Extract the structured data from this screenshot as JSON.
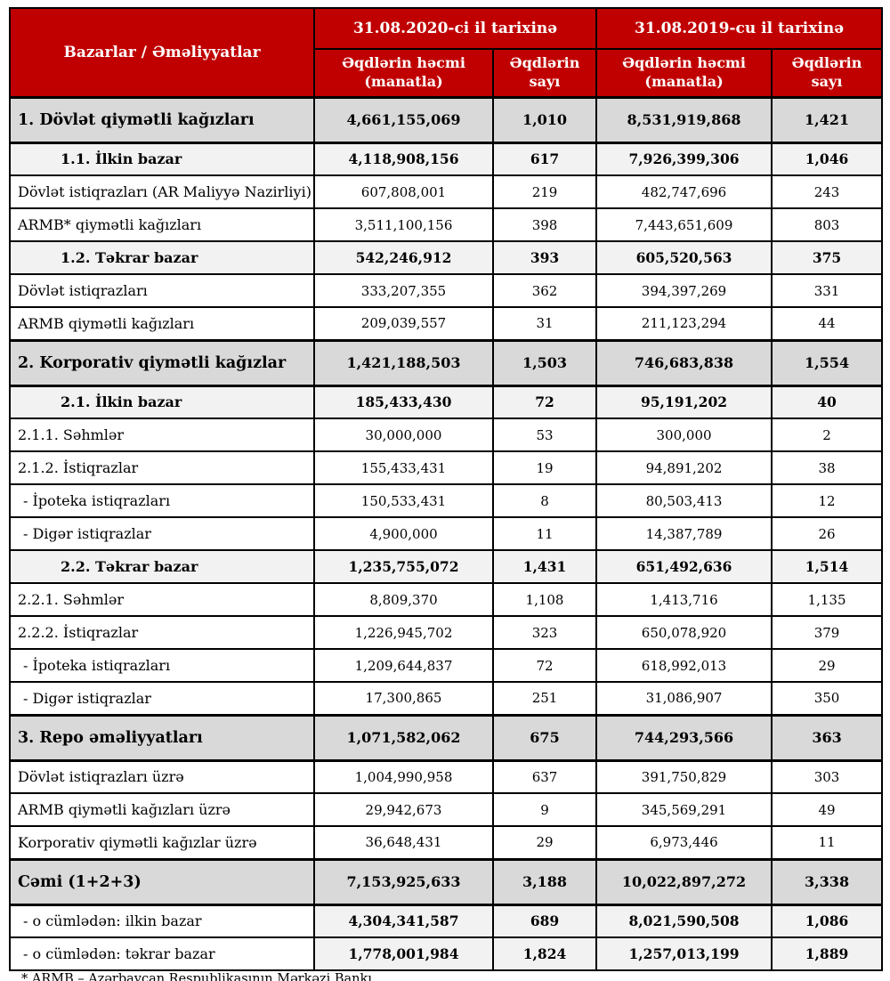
{
  "header": {
    "row_label": "Bazarlar / Əməliyyatlar",
    "groups": [
      {
        "title": "31.08.2020-ci il tarixinə",
        "volume_label": "Əqdlərin həcmi (manatla)",
        "count_label": "Əqdlərin sayı"
      },
      {
        "title": "31.08.2019-cu il tarixinə",
        "volume_label": "Əqdlərin həcmi (manatla)",
        "count_label": "Əqdlərin sayı"
      }
    ]
  },
  "rows": [
    {
      "style": "section",
      "label": "1. Dövlət qiymətli kağızları",
      "v2020": "4,661,155,069",
      "c2020": "1,010",
      "v2019": "8,531,919,868",
      "c2019": "1,421"
    },
    {
      "style": "subsection",
      "label": "1.1. İlkin bazar",
      "v2020": "4,118,908,156",
      "c2020": "617",
      "v2019": "7,926,399,306",
      "c2019": "1,046"
    },
    {
      "style": "detail",
      "label": "Dövlət istiqrazları (AR Maliyyə Nazirliyi)",
      "v2020": "607,808,001",
      "c2020": "219",
      "v2019": "482,747,696",
      "c2019": "243"
    },
    {
      "style": "detail",
      "label": "ARMB* qiymətli kağızları",
      "v2020": "3,511,100,156",
      "c2020": "398",
      "v2019": "7,443,651,609",
      "c2019": "803"
    },
    {
      "style": "subsection",
      "label": "1.2. Təkrar bazar",
      "v2020": "542,246,912",
      "c2020": "393",
      "v2019": "605,520,563",
      "c2019": "375"
    },
    {
      "style": "detail",
      "label": "Dövlət istiqrazları",
      "v2020": "333,207,355",
      "c2020": "362",
      "v2019": "394,397,269",
      "c2019": "331"
    },
    {
      "style": "detail",
      "label": "ARMB qiymətli kağızları",
      "v2020": "209,039,557",
      "c2020": "31",
      "v2019": "211,123,294",
      "c2019": "44"
    },
    {
      "style": "section",
      "label": "2. Korporativ qiymətli kağızlar",
      "v2020": "1,421,188,503",
      "c2020": "1,503",
      "v2019": "746,683,838",
      "c2019": "1,554"
    },
    {
      "style": "subsection",
      "label": "2.1. İlkin bazar",
      "v2020": "185,433,430",
      "c2020": "72",
      "v2019": "95,191,202",
      "c2019": "40"
    },
    {
      "style": "detail",
      "label": "2.1.1. Səhmlər",
      "v2020": "30,000,000",
      "c2020": "53",
      "v2019": "300,000",
      "c2019": "2"
    },
    {
      "style": "detail",
      "label": "2.1.2. İstiqrazlar",
      "v2020": "155,433,431",
      "c2020": "19",
      "v2019": "94,891,202",
      "c2019": "38"
    },
    {
      "style": "detail dash",
      "label": "-  İpoteka istiqrazları",
      "v2020": "150,533,431",
      "c2020": "8",
      "v2019": "80,503,413",
      "c2019": "12"
    },
    {
      "style": "detail dash",
      "label": "-  Digər istiqrazlar",
      "v2020": "4,900,000",
      "c2020": "11",
      "v2019": "14,387,789",
      "c2019": "26"
    },
    {
      "style": "subsection",
      "label": "2.2. Təkrar bazar",
      "v2020": "1,235,755,072",
      "c2020": "1,431",
      "v2019": "651,492,636",
      "c2019": "1,514"
    },
    {
      "style": "detail",
      "label": "2.2.1. Səhmlər",
      "v2020": "8,809,370",
      "c2020": "1,108",
      "v2019": "1,413,716",
      "c2019": "1,135"
    },
    {
      "style": "detail",
      "label": "2.2.2. İstiqrazlar",
      "v2020": "1,226,945,702",
      "c2020": "323",
      "v2019": "650,078,920",
      "c2019": "379"
    },
    {
      "style": "detail dash",
      "label": "-  İpoteka istiqrazları",
      "v2020": "1,209,644,837",
      "c2020": "72",
      "v2019": "618,992,013",
      "c2019": "29"
    },
    {
      "style": "detail dash",
      "label": "-  Digər istiqrazlar",
      "v2020": "17,300,865",
      "c2020": "251",
      "v2019": "31,086,907",
      "c2019": "350"
    },
    {
      "style": "section",
      "label": "3. Repo əməliyyatları",
      "v2020": "1,071,582,062",
      "c2020": "675",
      "v2019": "744,293,566",
      "c2019": "363"
    },
    {
      "style": "detail",
      "label": "Dövlət istiqrazları üzrə",
      "v2020": "1,004,990,958",
      "c2020": "637",
      "v2019": "391,750,829",
      "c2019": "303"
    },
    {
      "style": "detail",
      "label": "ARMB qiymətli kağızları üzrə",
      "v2020": "29,942,673",
      "c2020": "9",
      "v2019": "345,569,291",
      "c2019": "49"
    },
    {
      "style": "detail",
      "label": "Korporativ qiymətli kağızlar üzrə",
      "v2020": "36,648,431",
      "c2020": "29",
      "v2019": "6,973,446",
      "c2019": "11"
    },
    {
      "style": "section",
      "label": "Cəmi (1+2+3)",
      "v2020": "7,153,925,633",
      "c2020": "3,188",
      "v2019": "10,022,897,272",
      "c2019": "3,338"
    },
    {
      "style": "totalsub",
      "label": "-  o cümlədən: ilkin bazar",
      "v2020": "4,304,341,587",
      "c2020": "689",
      "v2019": "8,021,590,508",
      "c2019": "1,086"
    },
    {
      "style": "totalsub",
      "label": "-  o cümlədən: təkrar bazar",
      "v2020": "1,778,001,984",
      "c2020": "1,824",
      "v2019": "1,257,013,199",
      "c2019": "1,889"
    }
  ],
  "footnote": "* ARMB – Azərbaycan Respublikasının Mərkəzi Bankı",
  "colors": {
    "header_bg": "#c00000",
    "header_text": "#ffffff",
    "section_row_bg": "#d9d9d9",
    "subsection_row_bg": "#f2f2f2",
    "border": "#000000"
  }
}
